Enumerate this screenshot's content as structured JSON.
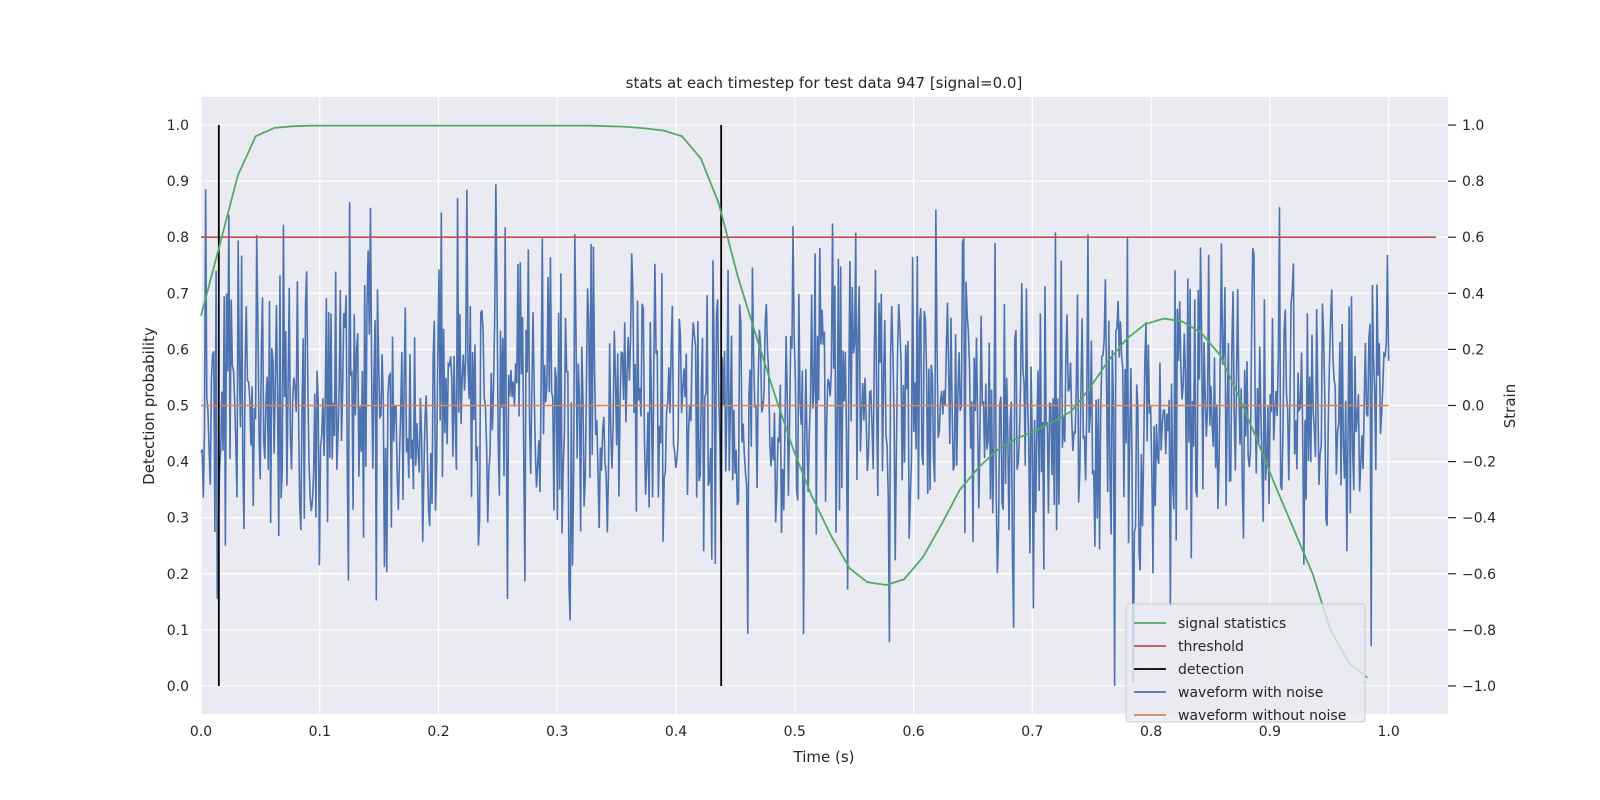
{
  "chart_data": {
    "type": "line",
    "title": "stats at each timestep for test data 947 [signal=0.0]",
    "xlabel": "Time (s)",
    "ylabel": "Detection probability",
    "ylabel_right": "Strain",
    "xlim": [
      0.0,
      1.05
    ],
    "ylim": [
      -0.05,
      1.05
    ],
    "ylim_right": [
      -1.1,
      1.1
    ],
    "x_ticks": [
      "0.0",
      "0.1",
      "0.2",
      "0.3",
      "0.4",
      "0.5",
      "0.6",
      "0.7",
      "0.8",
      "0.9",
      "1.0"
    ],
    "y_ticks": [
      "0.0",
      "0.1",
      "0.2",
      "0.3",
      "0.4",
      "0.5",
      "0.6",
      "0.7",
      "0.8",
      "0.9",
      "1.0"
    ],
    "y_right_ticks": [
      "−1.0",
      "−0.8",
      "−0.6",
      "−0.4",
      "−0.2",
      "0.0",
      "0.2",
      "0.4",
      "0.6",
      "0.8",
      "1.0"
    ],
    "grid": true,
    "legend_position": "bottom-right",
    "series": [
      {
        "name": "signal statistics",
        "color": "#55a868",
        "axis": "left",
        "x": [
          0.0,
          0.015,
          0.031,
          0.046,
          0.062,
          0.078,
          0.093,
          0.109,
          0.124,
          0.14,
          0.156,
          0.171,
          0.187,
          0.202,
          0.218,
          0.234,
          0.249,
          0.265,
          0.28,
          0.296,
          0.312,
          0.327,
          0.343,
          0.358,
          0.374,
          0.39,
          0.405,
          0.421,
          0.436,
          0.452,
          0.468,
          0.483,
          0.499,
          0.514,
          0.53,
          0.546,
          0.561,
          0.577,
          0.592,
          0.608,
          0.624,
          0.639,
          0.655,
          0.67,
          0.686,
          0.702,
          0.717,
          0.733,
          0.748,
          0.764,
          0.78,
          0.795,
          0.811,
          0.826,
          0.842,
          0.858,
          0.873,
          0.889,
          0.904,
          0.92,
          0.936,
          0.951,
          0.967,
          0.982
        ],
        "y": [
          0.66,
          0.78,
          0.91,
          0.98,
          0.995,
          0.998,
          0.999,
          0.999,
          0.999,
          0.999,
          0.999,
          0.999,
          0.999,
          0.999,
          0.999,
          0.999,
          0.999,
          0.999,
          0.999,
          0.999,
          0.999,
          0.999,
          0.998,
          0.997,
          0.994,
          0.99,
          0.98,
          0.94,
          0.86,
          0.73,
          0.62,
          0.52,
          0.42,
          0.34,
          0.27,
          0.21,
          0.185,
          0.18,
          0.19,
          0.23,
          0.29,
          0.35,
          0.39,
          0.42,
          0.44,
          0.455,
          0.47,
          0.49,
          0.53,
          0.58,
          0.62,
          0.645,
          0.655,
          0.65,
          0.63,
          0.59,
          0.52,
          0.44,
          0.36,
          0.28,
          0.2,
          0.1,
          0.04,
          0.015
        ]
      },
      {
        "name": "threshold",
        "color": "#c44e52",
        "axis": "left",
        "x": [
          0.0,
          1.04
        ],
        "y": [
          0.8,
          0.8
        ]
      },
      {
        "name": "detection",
        "color": "#000000",
        "axis": "left",
        "x": [
          0.015,
          0.438
        ],
        "y": [
          1.0,
          1.0
        ]
      },
      {
        "name": "waveform with noise",
        "color": "#4c72b0",
        "axis": "right",
        "amplitude_envelope": [
          -1.0,
          1.0
        ]
      },
      {
        "name": "waveform without noise",
        "color": "#dd8452",
        "axis": "right",
        "x": [
          0.0,
          1.0
        ],
        "y": [
          0.0,
          0.0
        ]
      }
    ]
  }
}
